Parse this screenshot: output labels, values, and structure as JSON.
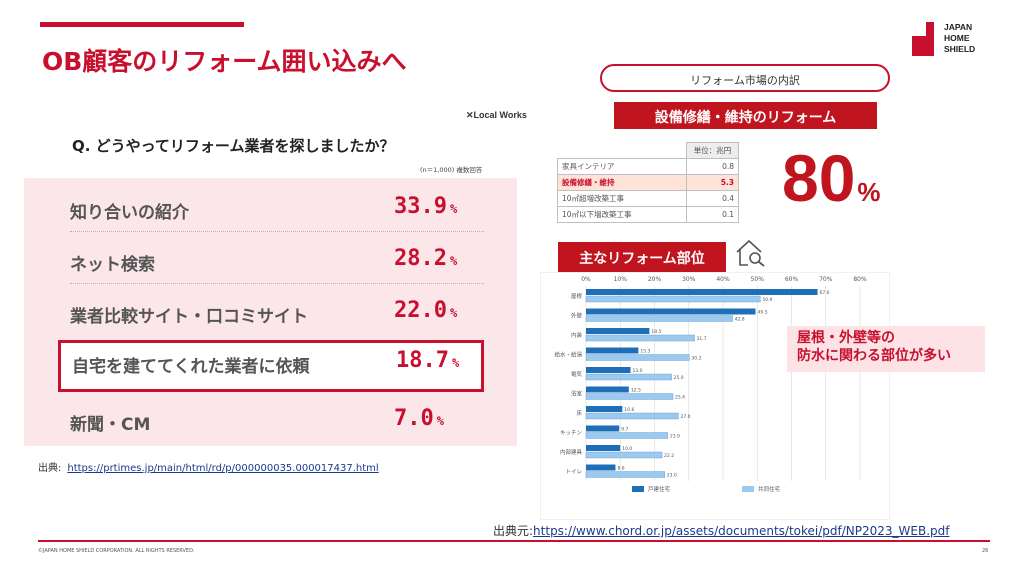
{
  "slide": {
    "title": "OB顧客のリフォーム囲い込みへ",
    "logo": {
      "line1": "JAPAN",
      "line2": "HOME",
      "line3": "SHIELD"
    },
    "copyright": "©JAPAN HOME SHIELD CORPORATION. ALL RIGHTS RESERVED.",
    "page_number": "26"
  },
  "survey": {
    "brand": "Local Works",
    "question": "Q. どうやってリフォーム業者を探しましたか？",
    "note": "(n＝1,000) 複数回答",
    "percent_symbol": "%",
    "rows": [
      {
        "label": "知り合いの紹介",
        "value": "33.9"
      },
      {
        "label": "ネット検索",
        "value": "28.2"
      },
      {
        "label": "業者比較サイト・口コミサイト",
        "value": "22.0"
      },
      {
        "label": "自宅を建ててくれた業者に依頼",
        "value": "18.7"
      },
      {
        "label": "新聞・CM",
        "value": "7.0"
      }
    ],
    "source_label": "出典:",
    "source_url": "https://prtimes.jp/main/html/rd/p/000000035.000017437.html"
  },
  "market": {
    "pill": "リフォーム市場の内訳",
    "banner": "設備修繕・維持のリフォーム",
    "unit": "単位：兆円",
    "rows": [
      {
        "label": "家具インテリア",
        "value": "0.8",
        "highlight": false
      },
      {
        "label": "設備修繕・維持",
        "value": "5.3",
        "highlight": true
      },
      {
        "label": "10㎡超増改築工事",
        "value": "0.4",
        "highlight": false
      },
      {
        "label": "10㎡以下増改築工事",
        "value": "0.1",
        "highlight": false
      }
    ],
    "big_value": "80",
    "big_symbol": "%"
  },
  "parts": {
    "banner": "主なリフォーム部位",
    "callout_line1": "屋根・外壁等の",
    "callout_line2": "防水に関わる部位が多い",
    "source_label": "出典元:",
    "source_url": "https://www.chord.or.jp/assets/documents/tokei/pdf/NP2023_WEB.pdf"
  },
  "chart_data": {
    "type": "bar",
    "orientation": "horizontal",
    "categories": [
      "屋根",
      "外壁",
      "内装",
      "給水・給湯",
      "電気",
      "浴室",
      "床",
      "キッチン",
      "内部建具",
      "トイレ"
    ],
    "xlim": [
      0,
      80
    ],
    "x_ticks": [
      "0%",
      "10%",
      "20%",
      "30%",
      "40%",
      "50%",
      "60%",
      "70%",
      "80%"
    ],
    "series": [
      {
        "name": "戸建住宅",
        "color": "#1f6fb8",
        "values": [
          67.6,
          49.5,
          18.5,
          15.3,
          13.0,
          12.5,
          10.6,
          9.7,
          10.0,
          8.6
        ]
      },
      {
        "name": "共同住宅",
        "color": "#9cc9ee",
        "values": [
          50.9,
          42.8,
          31.7,
          30.2,
          25.0,
          25.4,
          27.0,
          23.9,
          22.2,
          23.0
        ]
      }
    ],
    "legend_position": "bottom"
  }
}
